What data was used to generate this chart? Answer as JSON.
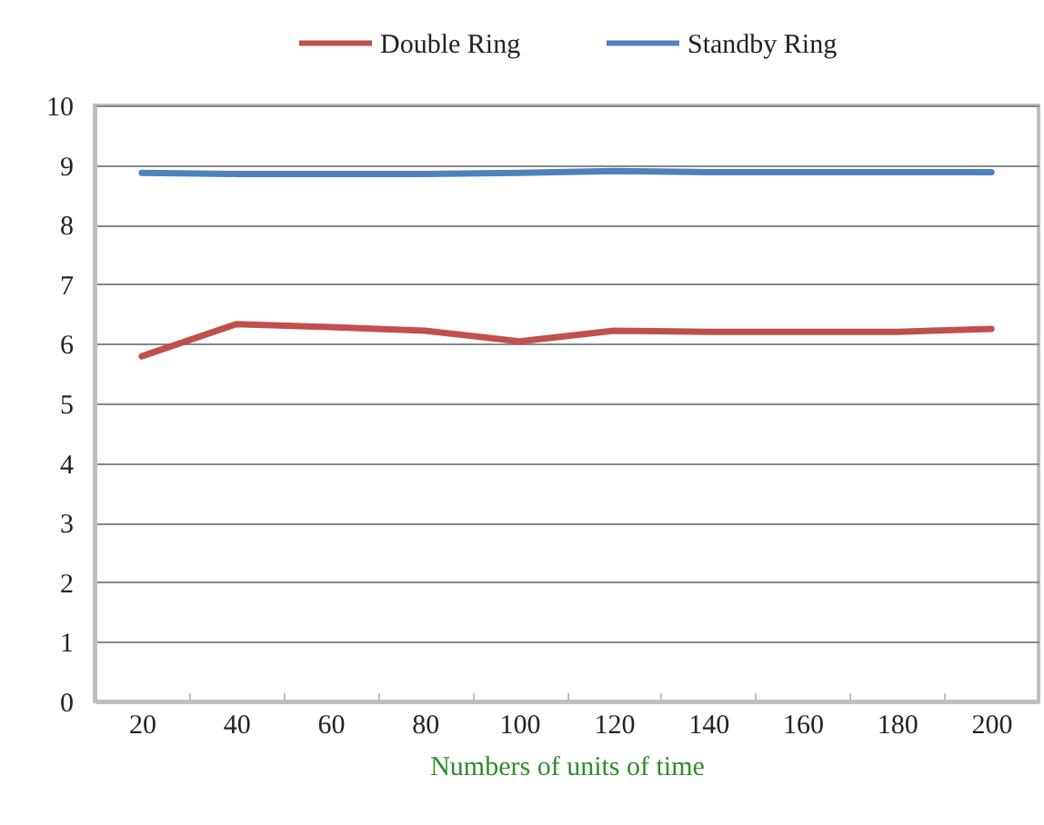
{
  "chart_data": {
    "type": "line",
    "xlabel": "Numbers of units of time",
    "categories": [
      "20",
      "40",
      "60",
      "80",
      "100",
      "120",
      "140",
      "160",
      "180",
      "200"
    ],
    "ylim": [
      0,
      10
    ],
    "yticks": [
      0,
      1,
      2,
      3,
      4,
      5,
      6,
      7,
      8,
      9,
      10
    ],
    "grid": "y",
    "legend": "top",
    "series": [
      {
        "name": "Double Ring",
        "color": "#c0504d",
        "values": [
          5.79,
          6.33,
          6.28,
          6.22,
          6.04,
          6.22,
          6.2,
          6.2,
          6.2,
          6.25
        ]
      },
      {
        "name": "Standby Ring",
        "color": "#4f81bd",
        "values": [
          8.87,
          8.85,
          8.85,
          8.85,
          8.87,
          8.9,
          8.88,
          8.88,
          8.88,
          8.88
        ]
      }
    ]
  }
}
